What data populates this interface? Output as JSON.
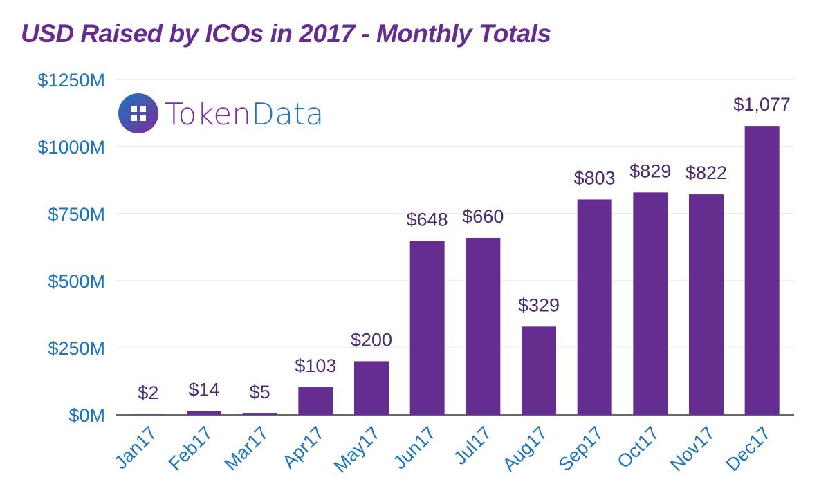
{
  "chart_data": {
    "type": "bar",
    "title": "USD Raised by ICOs in 2017 - Monthly Totals",
    "categories": [
      "Jan17",
      "Feb17",
      "Mar17",
      "Apr17",
      "May17",
      "Jun17",
      "Jul17",
      "Aug17",
      "Sep17",
      "Oct17",
      "Nov17",
      "Dec17"
    ],
    "values": [
      2,
      14,
      5,
      103,
      200,
      648,
      660,
      329,
      803,
      829,
      822,
      1077
    ],
    "data_labels": [
      "$2",
      "$14",
      "$5",
      "$103",
      "$200",
      "$648",
      "$660",
      "$329",
      "$803",
      "$829",
      "$822",
      "$1,077"
    ],
    "unit": "USD millions",
    "ylim": [
      0,
      1250
    ],
    "yticks": [
      0,
      250,
      500,
      750,
      1000,
      1250
    ],
    "ytick_labels": [
      "$0M",
      "$250M",
      "$500M",
      "$750M",
      "$1000M",
      "$1250M"
    ],
    "grid": true,
    "colors": {
      "bar": "#652d90",
      "axis_text": "#1c75bc",
      "title": "#652d90",
      "label": "#4a2a6e",
      "grid": "#dddddd"
    }
  },
  "logo": {
    "text_part1": "Token",
    "text_part2": "Data",
    "colors": {
      "part1": "#7b2d9c",
      "part2": "#1c75bc"
    }
  }
}
